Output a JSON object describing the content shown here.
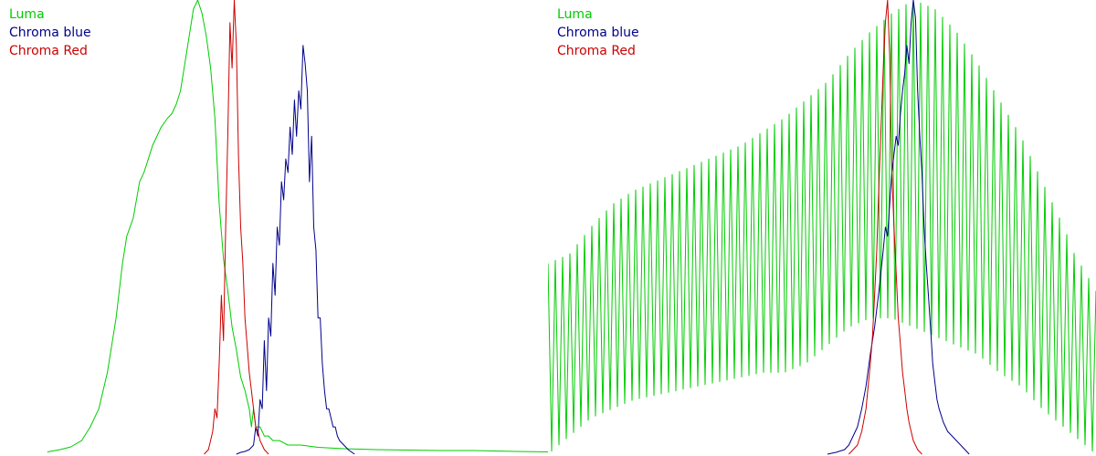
{
  "chart_data": [
    {
      "type": "line",
      "xlim": [
        0,
        255
      ],
      "ylim": [
        0,
        1
      ],
      "grid": false,
      "legend_position": "top-left",
      "series": [
        {
          "name": "Luma",
          "color": "#00cc00",
          "x": [
            22,
            28,
            33,
            38,
            42,
            46,
            50,
            54,
            57,
            59,
            62,
            65,
            67,
            69,
            71,
            73,
            75,
            78,
            80,
            82,
            84,
            86,
            88,
            90,
            92,
            94,
            96,
            98,
            100,
            102,
            104,
            106,
            108,
            110,
            112,
            114,
            116,
            117,
            118,
            119,
            121,
            122,
            123,
            125,
            127,
            130,
            134,
            140,
            148,
            160,
            175,
            190,
            205,
            220,
            240,
            255
          ],
          "values": [
            0.005,
            0.01,
            0.016,
            0.03,
            0.06,
            0.1,
            0.18,
            0.3,
            0.42,
            0.48,
            0.52,
            0.6,
            0.62,
            0.65,
            0.68,
            0.7,
            0.72,
            0.74,
            0.75,
            0.77,
            0.8,
            0.86,
            0.92,
            0.98,
            1.0,
            0.97,
            0.92,
            0.85,
            0.74,
            0.55,
            0.43,
            0.36,
            0.28,
            0.23,
            0.17,
            0.14,
            0.1,
            0.06,
            0.1,
            0.06,
            0.06,
            0.05,
            0.04,
            0.04,
            0.03,
            0.03,
            0.02,
            0.02,
            0.015,
            0.012,
            0.01,
            0.009,
            0.008,
            0.008,
            0.006,
            0.005
          ]
        },
        {
          "name": "Chroma blue",
          "color": "#00008b",
          "x": [
            110,
            112,
            114,
            116,
            117,
            118,
            119,
            120,
            121,
            122,
            123,
            124,
            125,
            126,
            127,
            128,
            129,
            130,
            131,
            132,
            133,
            134,
            135,
            136,
            137,
            138,
            139,
            140,
            141,
            142,
            143,
            144,
            145,
            146,
            147,
            148,
            149,
            150,
            151,
            152,
            153,
            154,
            155,
            156,
            157,
            158,
            160,
            162,
            165
          ],
          "values": [
            0.0,
            0.004,
            0.006,
            0.01,
            0.015,
            0.02,
            0.06,
            0.04,
            0.12,
            0.1,
            0.25,
            0.14,
            0.3,
            0.26,
            0.42,
            0.35,
            0.5,
            0.46,
            0.6,
            0.56,
            0.65,
            0.62,
            0.72,
            0.66,
            0.78,
            0.7,
            0.8,
            0.76,
            0.9,
            0.86,
            0.8,
            0.6,
            0.7,
            0.5,
            0.45,
            0.3,
            0.3,
            0.2,
            0.14,
            0.1,
            0.1,
            0.08,
            0.06,
            0.06,
            0.04,
            0.03,
            0.02,
            0.01,
            0.0
          ]
        },
        {
          "name": "Chroma Red",
          "color": "#cc0000",
          "x": [
            95,
            97,
            99,
            100,
            101,
            102,
            103,
            104,
            105,
            106,
            107,
            108,
            109,
            110,
            111,
            112,
            113,
            114,
            115,
            116,
            117,
            118,
            119,
            120,
            121,
            122,
            123,
            125
          ],
          "values": [
            0.0,
            0.01,
            0.05,
            0.1,
            0.08,
            0.2,
            0.35,
            0.25,
            0.5,
            0.7,
            0.95,
            0.85,
            1.0,
            0.9,
            0.65,
            0.5,
            0.42,
            0.3,
            0.24,
            0.18,
            0.14,
            0.1,
            0.06,
            0.05,
            0.03,
            0.02,
            0.01,
            0.0
          ]
        }
      ]
    },
    {
      "type": "line",
      "xlim": [
        0,
        255
      ],
      "ylim": [
        0,
        1
      ],
      "grid": false,
      "legend_position": "top-left",
      "series": [
        {
          "name": "Luma",
          "color": "#00cc00",
          "x": [
            0,
            10,
            20,
            30,
            40,
            50,
            60,
            70,
            80,
            90,
            100,
            110,
            120,
            130,
            140,
            150,
            160,
            170,
            180,
            190,
            200,
            210,
            220,
            230,
            240,
            245,
            250,
            255
          ],
          "values": [
            0.42,
            0.44,
            0.5,
            0.55,
            0.58,
            0.6,
            0.62,
            0.64,
            0.66,
            0.68,
            0.71,
            0.74,
            0.78,
            0.82,
            0.88,
            0.93,
            0.97,
            1.0,
            0.98,
            0.93,
            0.86,
            0.78,
            0.7,
            0.6,
            0.5,
            0.44,
            0.4,
            0.36
          ],
          "comb_lower": [
            0.0,
            0.04,
            0.08,
            0.1,
            0.12,
            0.13,
            0.14,
            0.15,
            0.16,
            0.17,
            0.18,
            0.18,
            0.2,
            0.24,
            0.28,
            0.3,
            0.3,
            0.28,
            0.26,
            0.24,
            0.22,
            0.18,
            0.15,
            0.1,
            0.06,
            0.04,
            0.02,
            0.0
          ]
        },
        {
          "name": "Chroma blue",
          "color": "#00008b",
          "x": [
            130,
            134,
            138,
            140,
            142,
            144,
            146,
            148,
            150,
            152,
            154,
            156,
            157,
            158,
            159,
            160,
            161,
            162,
            163,
            164,
            165,
            166,
            167,
            168,
            169,
            170,
            171,
            172,
            173,
            174,
            175,
            176,
            177,
            178,
            179,
            180,
            181,
            182,
            184,
            186,
            188,
            190,
            192,
            194,
            196
          ],
          "values": [
            0.0,
            0.004,
            0.01,
            0.02,
            0.04,
            0.06,
            0.1,
            0.15,
            0.22,
            0.28,
            0.36,
            0.45,
            0.5,
            0.48,
            0.55,
            0.62,
            0.66,
            0.7,
            0.68,
            0.75,
            0.8,
            0.84,
            0.9,
            0.86,
            0.95,
            1.0,
            0.96,
            0.8,
            0.7,
            0.62,
            0.5,
            0.42,
            0.35,
            0.28,
            0.2,
            0.16,
            0.12,
            0.1,
            0.07,
            0.05,
            0.04,
            0.03,
            0.02,
            0.01,
            0.0
          ]
        },
        {
          "name": "Chroma Red",
          "color": "#cc0000",
          "x": [
            140,
            144,
            146,
            148,
            150,
            151,
            152,
            153,
            154,
            155,
            156,
            157,
            158,
            159,
            160,
            161,
            162,
            163,
            164,
            165,
            166,
            167,
            168,
            169,
            170,
            172,
            174
          ],
          "values": [
            0.0,
            0.02,
            0.05,
            0.1,
            0.2,
            0.26,
            0.35,
            0.45,
            0.6,
            0.72,
            0.85,
            0.95,
            1.0,
            0.88,
            0.62,
            0.5,
            0.4,
            0.3,
            0.24,
            0.18,
            0.14,
            0.1,
            0.07,
            0.05,
            0.03,
            0.01,
            0.0
          ]
        }
      ]
    }
  ]
}
